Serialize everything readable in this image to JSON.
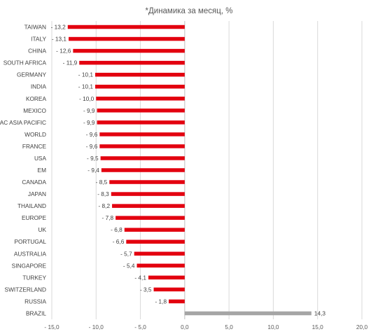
{
  "chart_data": {
    "type": "bar",
    "orientation": "horizontal",
    "title": "*Динамика за месяц, %",
    "xlabel": "",
    "ylabel": "",
    "xlim": [
      -15,
      20
    ],
    "x_ticks": [
      -15,
      -10,
      -5,
      0,
      5,
      10,
      15,
      20
    ],
    "x_tick_labels": [
      "- 15,0",
      "- 10,0",
      "- 5,0",
      "0,0",
      "5,0",
      "10,0",
      "15,0",
      "20,0"
    ],
    "grid": "vertical",
    "legend": "none",
    "categories": [
      "TAIWAN",
      "ITALY",
      "CHINA",
      "SOUTH AFRICA",
      "GERMANY",
      "INDIA",
      "KOREA",
      "MEXICO",
      "AC ASIA PACIFIC",
      "WORLD",
      "FRANCE",
      "USA",
      "EM",
      "CANADA",
      "JAPAN",
      "THAILAND",
      "EUROPE",
      "UK",
      "PORTUGAL",
      "AUSTRALIA",
      "SINGAPORE",
      "TURKEY",
      "SWITZERLAND",
      "RUSSIA",
      "BRAZIL"
    ],
    "values": [
      -13.2,
      -13.1,
      -12.6,
      -11.9,
      -10.1,
      -10.1,
      -10.0,
      -9.9,
      -9.9,
      -9.6,
      -9.6,
      -9.5,
      -9.4,
      -8.5,
      -8.3,
      -8.2,
      -7.8,
      -6.8,
      -6.6,
      -5.7,
      -5.4,
      -4.1,
      -3.5,
      -1.8,
      14.3
    ],
    "value_labels": [
      "- 13,2",
      "- 13,1",
      "- 12,6",
      "- 11,9",
      "- 10,1",
      "- 10,1",
      "- 10,0",
      "- 9,9",
      "- 9,9",
      "- 9,6",
      "- 9,6",
      "- 9,5",
      "- 9,4",
      "- 8,5",
      "- 8,3",
      "- 8,2",
      "- 7,8",
      "- 6,8",
      "- 6,6",
      "- 5,7",
      "- 5,4",
      "- 4,1",
      "- 3,5",
      "- 1,8",
      "14,3"
    ],
    "colors": {
      "negative": "#e3000f",
      "positive": "#a5a5a5",
      "grid": "#d9d9d9",
      "axis": "#bfbfbf"
    }
  }
}
